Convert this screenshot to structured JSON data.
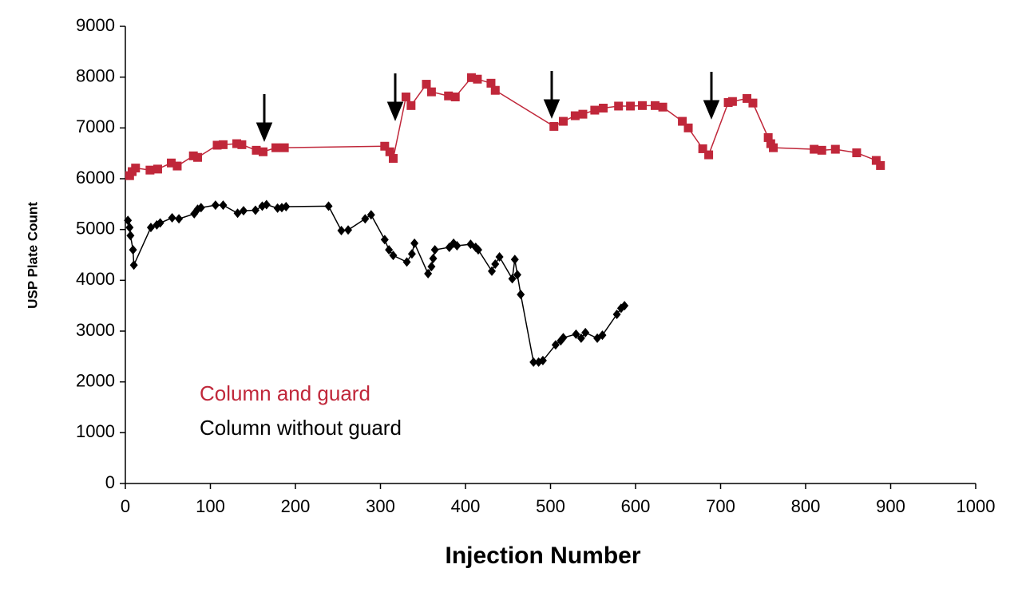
{
  "chart_data": {
    "type": "line",
    "xlabel": "Injection Number",
    "ylabel": "USP Plate Count",
    "xlim": [
      0,
      1000
    ],
    "xticks": [
      0,
      100,
      200,
      300,
      400,
      500,
      600,
      700,
      800,
      900,
      1000
    ],
    "ylim": [
      0,
      9000
    ],
    "yticks": [
      0,
      1000,
      2000,
      3000,
      4000,
      5000,
      6000,
      7000,
      8000,
      9000
    ],
    "grid": false,
    "legend": "lower left",
    "series": [
      {
        "name": "Column and guard",
        "color": "#c0273a",
        "marker": "square",
        "x": [
          5,
          8,
          12,
          29,
          38,
          54,
          61,
          80,
          85,
          108,
          115,
          131,
          137,
          154,
          162,
          177,
          187,
          305,
          311,
          315,
          330,
          336,
          354,
          360,
          380,
          388,
          407,
          414,
          430,
          435,
          504,
          515,
          529,
          538,
          552,
          562,
          580,
          594,
          608,
          623,
          632,
          655,
          662,
          679,
          686,
          709,
          714,
          731,
          738,
          756,
          759,
          762,
          810,
          819,
          835,
          860,
          883,
          888
        ],
        "values": [
          6060,
          6140,
          6210,
          6170,
          6190,
          6310,
          6250,
          6450,
          6420,
          6660,
          6670,
          6690,
          6670,
          6560,
          6530,
          6610,
          6610,
          6640,
          6530,
          6400,
          7610,
          7440,
          7860,
          7710,
          7630,
          7610,
          7990,
          7960,
          7880,
          7740,
          7030,
          7130,
          7240,
          7270,
          7350,
          7390,
          7430,
          7430,
          7440,
          7440,
          7410,
          7130,
          7000,
          6590,
          6470,
          7500,
          7520,
          7580,
          7490,
          6810,
          6690,
          6610,
          6580,
          6560,
          6580,
          6510,
          6360,
          6260
        ]
      },
      {
        "name": "Column without guard",
        "color": "#000000",
        "marker": "diamond",
        "x": [
          3,
          5,
          6,
          9,
          10,
          30,
          37,
          41,
          55,
          63,
          81,
          85,
          89,
          106,
          115,
          132,
          139,
          153,
          161,
          166,
          179,
          184,
          189,
          239,
          254,
          262,
          282,
          289,
          305,
          310,
          315,
          331,
          337,
          340,
          356,
          360,
          362,
          364,
          381,
          386,
          390,
          406,
          412,
          415,
          431,
          435,
          440,
          455,
          458,
          461,
          465,
          480,
          486,
          491,
          506,
          512,
          515,
          530,
          536,
          541,
          555,
          561,
          578,
          583,
          587
        ],
        "values": [
          5180,
          5040,
          4880,
          4600,
          4300,
          5040,
          5090,
          5130,
          5230,
          5210,
          5310,
          5400,
          5430,
          5480,
          5480,
          5320,
          5370,
          5380,
          5460,
          5490,
          5420,
          5430,
          5450,
          5460,
          4980,
          4990,
          5210,
          5290,
          4800,
          4600,
          4490,
          4360,
          4520,
          4730,
          4130,
          4270,
          4430,
          4600,
          4650,
          4730,
          4680,
          4710,
          4650,
          4600,
          4180,
          4320,
          4460,
          4030,
          4410,
          4110,
          3720,
          2390,
          2390,
          2420,
          2730,
          2810,
          2870,
          2940,
          2860,
          2970,
          2860,
          2920,
          3330,
          3450,
          3500
        ]
      }
    ]
  }
}
